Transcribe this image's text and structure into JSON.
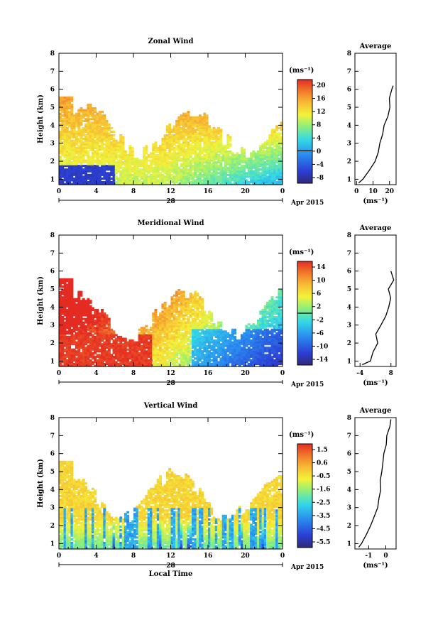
{
  "chart_data": [
    {
      "type": "heatmap",
      "title": "Zonal Wind",
      "ylabel": "Height (km)",
      "xticks": [
        "0",
        "4",
        "8",
        "12",
        "16",
        "20",
        "0"
      ],
      "yticks": [
        "1",
        "2",
        "3",
        "4",
        "5",
        "6",
        "7",
        "8"
      ],
      "ylim": [
        0.7,
        8
      ],
      "xlim": [
        0,
        24
      ],
      "date_label": "28",
      "month_label": "Apr 2015",
      "colorbar": {
        "unit": "(ms⁻¹)",
        "ticks": [
          "20",
          "16",
          "12",
          "8",
          "4",
          "0",
          "-4",
          "-8"
        ],
        "min": -10,
        "max": 22,
        "zero_line": 0
      },
      "profile": {
        "title": "Average",
        "xlabel": "(ms⁻¹)",
        "xticks": [
          "0",
          "10",
          "20"
        ],
        "xlim": [
          -1,
          24
        ],
        "heights": [
          0.8,
          1.0,
          1.5,
          2.0,
          2.5,
          3.0,
          3.5,
          4.0,
          4.5,
          5.0,
          5.5,
          6.0,
          6.2
        ],
        "values": [
          1,
          4,
          8,
          11,
          13,
          14,
          16,
          17,
          19,
          20,
          20,
          21,
          22
        ]
      }
    },
    {
      "type": "heatmap",
      "title": "Meridional Wind",
      "ylabel": "Height (km)",
      "xticks": [
        "0",
        "4",
        "8",
        "12",
        "16",
        "20",
        "0"
      ],
      "yticks": [
        "1",
        "2",
        "3",
        "4",
        "5",
        "6",
        "7",
        "8"
      ],
      "ylim": [
        0.7,
        8
      ],
      "xlim": [
        0,
        24
      ],
      "date_label": "28",
      "month_label": "Apr 2015",
      "colorbar": {
        "unit": "(ms⁻¹)",
        "ticks": [
          "14",
          "10",
          "6",
          "2",
          "-2",
          "-6",
          "-10",
          "-14"
        ],
        "min": -16,
        "max": 16,
        "zero_line": 0
      },
      "profile": {
        "title": "Average",
        "xlabel": "(ms⁻¹)",
        "xticks": [
          "-4",
          "8"
        ],
        "xlim": [
          -6,
          10
        ],
        "heights": [
          0.8,
          1.0,
          1.5,
          2.0,
          2.5,
          3.0,
          3.5,
          4.0,
          4.5,
          5.0,
          5.5,
          6.0
        ],
        "values": [
          -3,
          0,
          1,
          3,
          2,
          4,
          6,
          7,
          8,
          7,
          9,
          8
        ]
      }
    },
    {
      "type": "heatmap",
      "title": "Vertical Wind",
      "ylabel": "Height (km)",
      "xlabel": "Local Time",
      "xticks": [
        "0",
        "4",
        "8",
        "12",
        "16",
        "20",
        "0"
      ],
      "yticks": [
        "1",
        "2",
        "3",
        "4",
        "5",
        "6",
        "7",
        "8"
      ],
      "ylim": [
        0.7,
        8
      ],
      "xlim": [
        0,
        24
      ],
      "date_label": "28",
      "month_label": "Apr 2015",
      "colorbar": {
        "unit": "(ms⁻¹)",
        "ticks": [
          "1.5",
          "0.6",
          "-0.5",
          "-1.6",
          "-2.5",
          "-3.5",
          "-4.5",
          "-5.5"
        ],
        "min": -6,
        "max": 2
      },
      "profile": {
        "title": "Average",
        "xlabel": "(ms⁻¹)",
        "xticks": [
          "-1",
          "0"
        ],
        "xlim": [
          -1.8,
          0.6
        ],
        "heights": [
          0.8,
          1.0,
          1.5,
          2.0,
          2.5,
          3.0,
          3.5,
          4.0,
          4.5,
          5.0,
          5.5,
          6.0,
          6.5,
          7.0,
          7.5,
          7.9
        ],
        "values": [
          -1.6,
          -1.4,
          -1.1,
          -0.9,
          -0.7,
          -0.5,
          -0.4,
          -0.3,
          -0.3,
          -0.2,
          -0.2,
          -0.1,
          0.0,
          0.1,
          0.2,
          0.3
        ]
      }
    }
  ]
}
